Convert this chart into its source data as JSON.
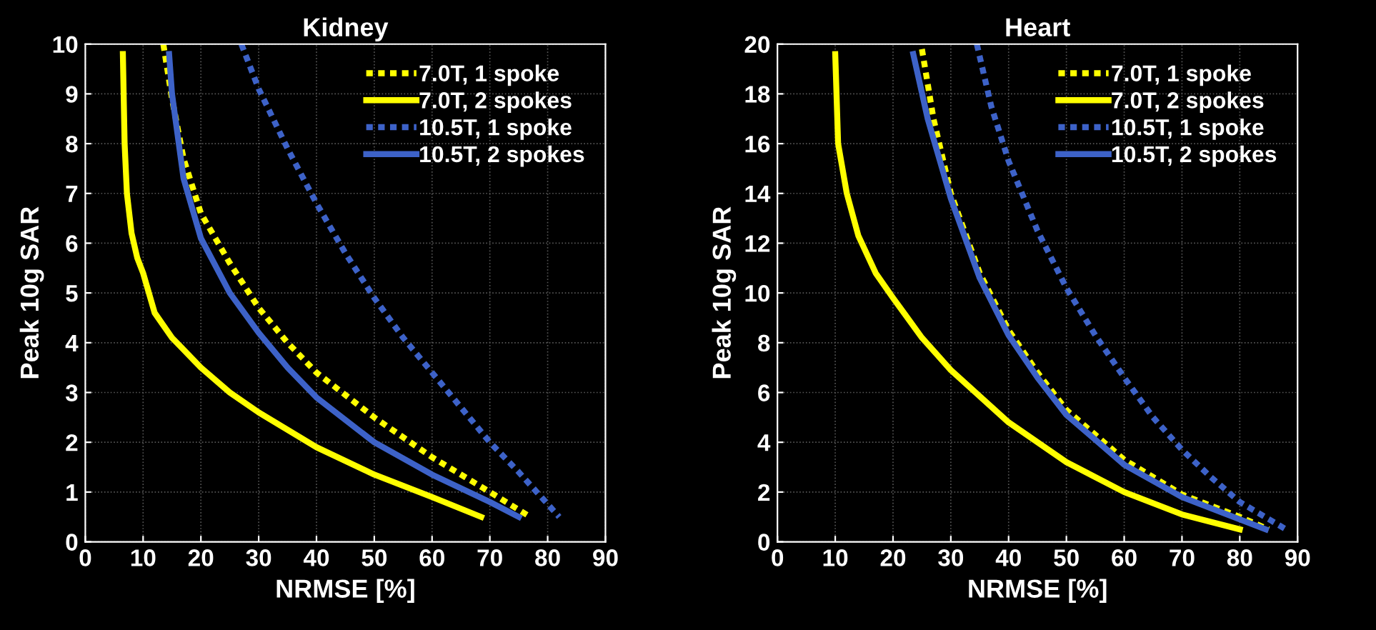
{
  "chart_data": [
    {
      "type": "line",
      "title": "Kidney",
      "xlabel": "NRMSE [%]",
      "ylabel": "Peak 10g SAR",
      "xlim": [
        0,
        90
      ],
      "ylim": [
        0,
        10
      ],
      "xticks": [
        0,
        10,
        20,
        30,
        40,
        50,
        60,
        70,
        80,
        90
      ],
      "yticks": [
        0,
        1,
        2,
        3,
        4,
        5,
        6,
        7,
        8,
        9,
        10
      ],
      "grid": true,
      "legend": "top right",
      "marker": "none",
      "series": [
        {
          "name": "7.0T, 1 spoke",
          "color": "#ffff00",
          "line_style": "dotted",
          "x": [
            13.5,
            15,
            17,
            20,
            25,
            30,
            35,
            40,
            50,
            60,
            70,
            77
          ],
          "values": [
            10,
            8.9,
            7.7,
            6.6,
            5.6,
            4.7,
            4.0,
            3.4,
            2.5,
            1.7,
            1.0,
            0.5
          ]
        },
        {
          "name": "7.0T, 2 spokes",
          "color": "#ffff00",
          "line_style": "solid",
          "x": [
            6.5,
            6.8,
            7.2,
            8,
            9,
            10,
            12,
            15,
            20,
            25,
            30,
            40,
            50,
            60,
            68.5
          ],
          "values": [
            9.8,
            8,
            7,
            6.2,
            5.7,
            5.4,
            4.6,
            4.1,
            3.5,
            3.0,
            2.6,
            1.9,
            1.35,
            0.9,
            0.5
          ]
        },
        {
          "name": "10.5T, 1 spoke",
          "color": "#3d62c8",
          "line_style": "dotted",
          "x": [
            27,
            30,
            35,
            40,
            45,
            50,
            55,
            60,
            65,
            70,
            75,
            82
          ],
          "values": [
            10,
            9.1,
            7.9,
            6.8,
            5.8,
            4.9,
            4.1,
            3.4,
            2.7,
            2.0,
            1.4,
            0.5
          ]
        },
        {
          "name": "10.5T, 2 spokes",
          "color": "#3d62c8",
          "line_style": "solid",
          "x": [
            14.5,
            15,
            17,
            20,
            25,
            30,
            35,
            40,
            50,
            60,
            70,
            75
          ],
          "values": [
            9.8,
            9,
            7.3,
            6.1,
            5.0,
            4.2,
            3.5,
            2.9,
            2.0,
            1.35,
            0.8,
            0.5
          ]
        }
      ]
    },
    {
      "type": "line",
      "title": "Heart",
      "xlabel": "NRMSE [%]",
      "ylabel": "Peak 10g SAR",
      "xlim": [
        0,
        90
      ],
      "ylim": [
        0,
        20
      ],
      "xticks": [
        0,
        10,
        20,
        30,
        40,
        50,
        60,
        70,
        80,
        90
      ],
      "yticks": [
        0,
        2,
        4,
        6,
        8,
        10,
        12,
        14,
        16,
        18,
        20
      ],
      "grid": true,
      "legend": "top right",
      "marker": "none",
      "series": [
        {
          "name": "7.0T, 1 spoke",
          "color": "#ffff00",
          "line_style": "dotted",
          "x": [
            25,
            27,
            30,
            35,
            40,
            45,
            50,
            60,
            70,
            80,
            85
          ],
          "values": [
            19.8,
            17,
            14,
            10.8,
            8.5,
            6.8,
            5.3,
            3.3,
            1.9,
            1.0,
            0.5
          ]
        },
        {
          "name": "7.0T, 2 spokes",
          "color": "#ffff00",
          "line_style": "solid",
          "x": [
            10,
            10.5,
            12,
            14,
            17,
            20,
            25,
            30,
            40,
            50,
            60,
            70,
            80
          ],
          "values": [
            19.6,
            16,
            14,
            12.3,
            10.8,
            9.8,
            8.2,
            6.9,
            4.8,
            3.2,
            2.0,
            1.1,
            0.5
          ]
        },
        {
          "name": "10.5T, 1 spoke",
          "color": "#3d62c8",
          "line_style": "dotted",
          "x": [
            34.5,
            37,
            40,
            45,
            50,
            55,
            60,
            65,
            70,
            75,
            80,
            88
          ],
          "values": [
            20,
            17.5,
            15.3,
            12.5,
            10.2,
            8.3,
            6.6,
            5.0,
            3.7,
            2.6,
            1.6,
            0.5
          ]
        },
        {
          "name": "10.5T, 2 spokes",
          "color": "#3d62c8",
          "line_style": "solid",
          "x": [
            23.5,
            26,
            30,
            35,
            40,
            45,
            50,
            60,
            70,
            80,
            84.5
          ],
          "values": [
            19.6,
            17,
            13.8,
            10.6,
            8.3,
            6.6,
            5.1,
            3.1,
            1.8,
            0.9,
            0.5
          ]
        }
      ]
    }
  ]
}
